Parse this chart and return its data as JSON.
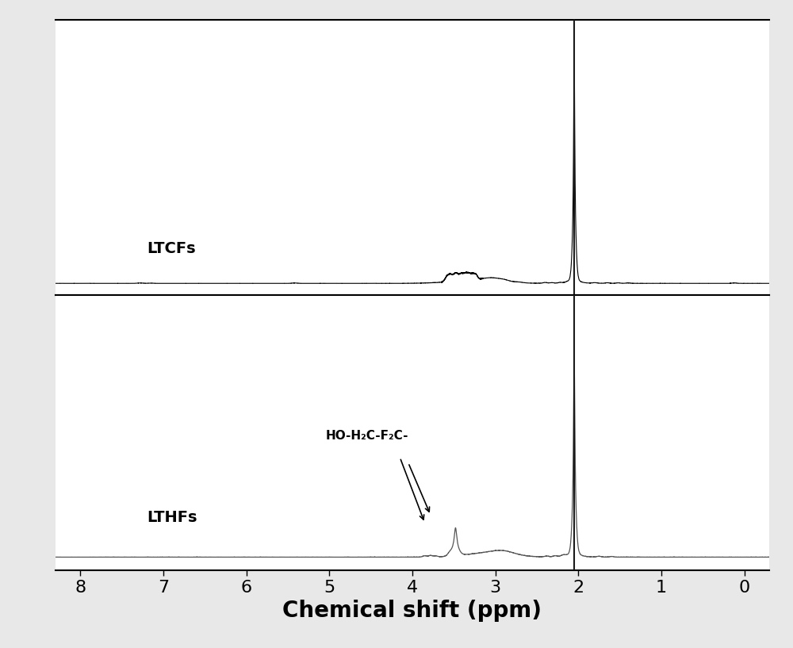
{
  "xlabel": "Chemical shift (ppm)",
  "xlabel_fontsize": 20,
  "xlabel_fontweight": "bold",
  "xlim": [
    8.3,
    -0.3
  ],
  "xticks": [
    8,
    7,
    6,
    5,
    4,
    3,
    2,
    1,
    0
  ],
  "tick_fontsize": 16,
  "label_ltcfs": "LTCFs",
  "label_lthfs": "LTHFs",
  "label_fontsize": 14,
  "annotation_text": "HO-H₂C-F₂C-",
  "annotation_fontsize": 11,
  "background_color": "#ffffff",
  "grid_color": "#d0d0d0",
  "line_color_top": "#000000",
  "line_color_bottom": "#555555",
  "separator_color": "#000000",
  "reference_line_color": "#1a1a1a",
  "fig_facecolor": "#e8e8e8"
}
